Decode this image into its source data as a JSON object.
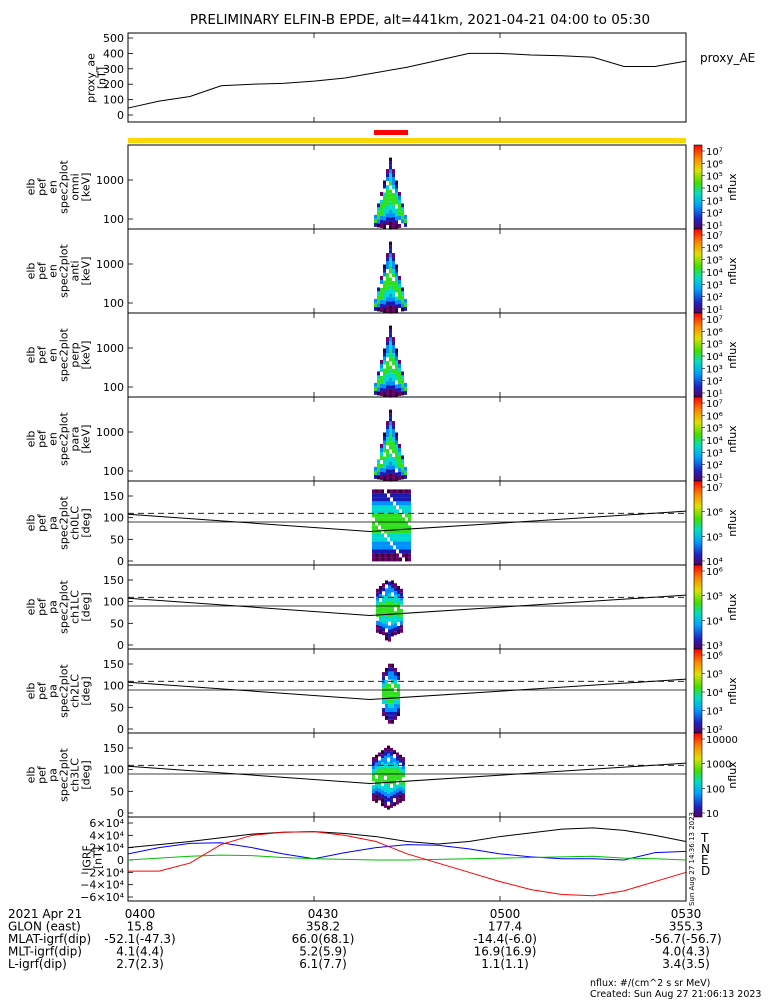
{
  "title": "PRELIMINARY ELFIN-B EPDE, alt=441km, 2021-04-21 04:00 to 05:30",
  "colors": {
    "bar_yellow": "#ffd700",
    "bar_red": "#ff0000",
    "series_T": "#000000",
    "series_N": "#0000ff",
    "series_E": "#00c000",
    "series_D": "#ff0000"
  },
  "panels": {
    "proxy_ae": {
      "ylabel_lines": [
        "proxy_ae",
        "[nT]"
      ],
      "yticks": [
        "500",
        "400",
        "300",
        "200",
        "100",
        "0"
      ],
      "legend": "proxy_AE",
      "ylim": [
        0,
        500
      ]
    },
    "spec": [
      {
        "ylabel_lines": [
          "elb",
          "pef",
          "en",
          "spec2plot",
          "omni",
          "[keV]"
        ],
        "yticks": [
          "1000",
          "100"
        ]
      },
      {
        "ylabel_lines": [
          "elb",
          "pef",
          "en",
          "spec2plot",
          "anti",
          "[keV]"
        ],
        "yticks": [
          "1000",
          "100"
        ]
      },
      {
        "ylabel_lines": [
          "elb",
          "pef",
          "en",
          "spec2plot",
          "perp",
          "[keV]"
        ],
        "yticks": [
          "1000",
          "100"
        ]
      },
      {
        "ylabel_lines": [
          "elb",
          "pef",
          "en",
          "spec2plot",
          "para",
          "[keV]"
        ],
        "yticks": [
          "1000",
          "100"
        ]
      }
    ],
    "pa": [
      {
        "ylabel_lines": [
          "elb",
          "pef",
          "pa",
          "spec2plot",
          "ch0LC",
          "[deg]"
        ],
        "yticks": [
          "150",
          "100",
          "50",
          "0"
        ]
      },
      {
        "ylabel_lines": [
          "elb",
          "pef",
          "pa",
          "spec2plot",
          "ch1LC",
          "[deg]"
        ],
        "yticks": [
          "150",
          "100",
          "50",
          "0"
        ]
      },
      {
        "ylabel_lines": [
          "elb",
          "pef",
          "pa",
          "spec2plot",
          "ch2LC",
          "[deg]"
        ],
        "yticks": [
          "150",
          "100",
          "50",
          "0"
        ]
      },
      {
        "ylabel_lines": [
          "elb",
          "pef",
          "pa",
          "spec2plot",
          "ch3LC",
          "[deg]"
        ],
        "yticks": [
          "150",
          "100",
          "50",
          "0"
        ]
      }
    ],
    "igrf": {
      "ylabel_lines": [
        "IGRF",
        "[nT]"
      ],
      "yticks": [
        "6×10⁴",
        "4×10⁴",
        "2×10⁴",
        "0",
        "−2×10⁴",
        "−4×10⁴",
        "−6×10⁴"
      ],
      "legend": [
        "T",
        "N",
        "E",
        "D"
      ],
      "side_note": "Sun Aug 27 14:36:13 2023"
    }
  },
  "colorbars": [
    {
      "label": "nflux",
      "ticks": [
        "10⁷",
        "10⁶",
        "10⁵",
        "10⁴",
        "10³",
        "10²",
        "10¹"
      ]
    },
    {
      "label": "nflux",
      "ticks": [
        "10⁷",
        "10⁶",
        "10⁵",
        "10⁴",
        "10³",
        "10²",
        "10¹"
      ]
    },
    {
      "label": "nflux",
      "ticks": [
        "10⁷",
        "10⁶",
        "10⁵",
        "10⁴",
        "10³",
        "10²",
        "10¹"
      ]
    },
    {
      "label": "nflux",
      "ticks": [
        "10⁷",
        "10⁶",
        "10⁵",
        "10⁴",
        "10³",
        "10²",
        "10¹"
      ]
    },
    {
      "label": "nflux",
      "ticks": [
        "10⁷",
        "10⁶",
        "10⁵",
        "10⁴"
      ]
    },
    {
      "label": "nflux",
      "ticks": [
        "10⁶",
        "10⁵",
        "10⁴",
        "10³"
      ]
    },
    {
      "label": "nflux",
      "ticks": [
        "10⁶",
        "10⁵",
        "10⁴",
        "10³",
        "10²"
      ]
    },
    {
      "label": "nflux",
      "ticks": [
        "10000",
        "1000",
        "100",
        "10"
      ]
    }
  ],
  "footer": {
    "rows": [
      {
        "label": "2021 Apr 21",
        "values": [
          "0400",
          "0430",
          "0500",
          "0530"
        ]
      },
      {
        "label": "GLON (east)",
        "values": [
          "15.8",
          "358.2",
          "177.4",
          "355.3"
        ]
      },
      {
        "label": "MLAT-igrf(dip)",
        "values": [
          "-52.1(-47.3)",
          "66.0(68.1)",
          "-14.4(-6.0)",
          "-56.7(-56.7)"
        ]
      },
      {
        "label": "MLT-igrf(dip)",
        "values": [
          "4.1(4.4)",
          "5.2(5.9)",
          "16.9(16.9)",
          "4.0(4.3)"
        ]
      },
      {
        "label": "L-igrf(dip)",
        "values": [
          "2.7(2.3)",
          "6.1(7.7)",
          "1.1(1.1)",
          "3.4(3.5)"
        ]
      }
    ],
    "units_note": "nflux: #/(cm^2 s sr MeV)",
    "created": "Created: Sun Aug 27 21:06:13 2023"
  },
  "chart_data": [
    {
      "type": "line",
      "title": "PRELIMINARY ELFIN-B EPDE, alt=441km, 2021-04-21 04:00 to 05:30",
      "ylabel": "proxy_ae [nT]",
      "ylim": [
        0,
        500
      ],
      "x_minutes": [
        0,
        5,
        10,
        15,
        20,
        25,
        30,
        35,
        40,
        45,
        50,
        55,
        60,
        65,
        70,
        75,
        80,
        85,
        90
      ],
      "series": [
        {
          "name": "proxy_AE",
          "values": [
            45,
            90,
            120,
            190,
            200,
            205,
            220,
            240,
            275,
            310,
            355,
            400,
            400,
            390,
            385,
            375,
            315,
            315,
            350
          ]
        }
      ]
    },
    {
      "type": "line",
      "ylabel": "IGRF [nT]",
      "ylim": [
        -60000,
        60000
      ],
      "x_minutes": [
        0,
        5,
        10,
        15,
        20,
        25,
        30,
        35,
        40,
        45,
        50,
        55,
        60,
        65,
        70,
        75,
        80,
        85,
        90
      ],
      "series": [
        {
          "name": "T",
          "values": [
            20000,
            25000,
            30000,
            36000,
            42000,
            45000,
            46000,
            43000,
            38000,
            30000,
            26000,
            30000,
            38000,
            44000,
            50000,
            52000,
            48000,
            40000,
            30000
          ]
        },
        {
          "name": "N",
          "values": [
            10000,
            20000,
            27000,
            28000,
            20000,
            10000,
            2000,
            12000,
            20000,
            25000,
            24000,
            18000,
            10000,
            5000,
            2000,
            2000,
            0,
            12000,
            14000
          ]
        },
        {
          "name": "E",
          "values": [
            0,
            3000,
            6000,
            8000,
            7000,
            4000,
            2000,
            1000,
            0,
            0,
            1000,
            2000,
            3000,
            4000,
            5000,
            6000,
            3000,
            2000,
            0
          ]
        },
        {
          "name": "D",
          "values": [
            -18000,
            -18000,
            -5000,
            25000,
            40000,
            45000,
            46000,
            40000,
            30000,
            10000,
            -5000,
            -20000,
            -35000,
            -48000,
            -56000,
            -58000,
            -50000,
            -35000,
            -20000
          ]
        }
      ]
    }
  ]
}
